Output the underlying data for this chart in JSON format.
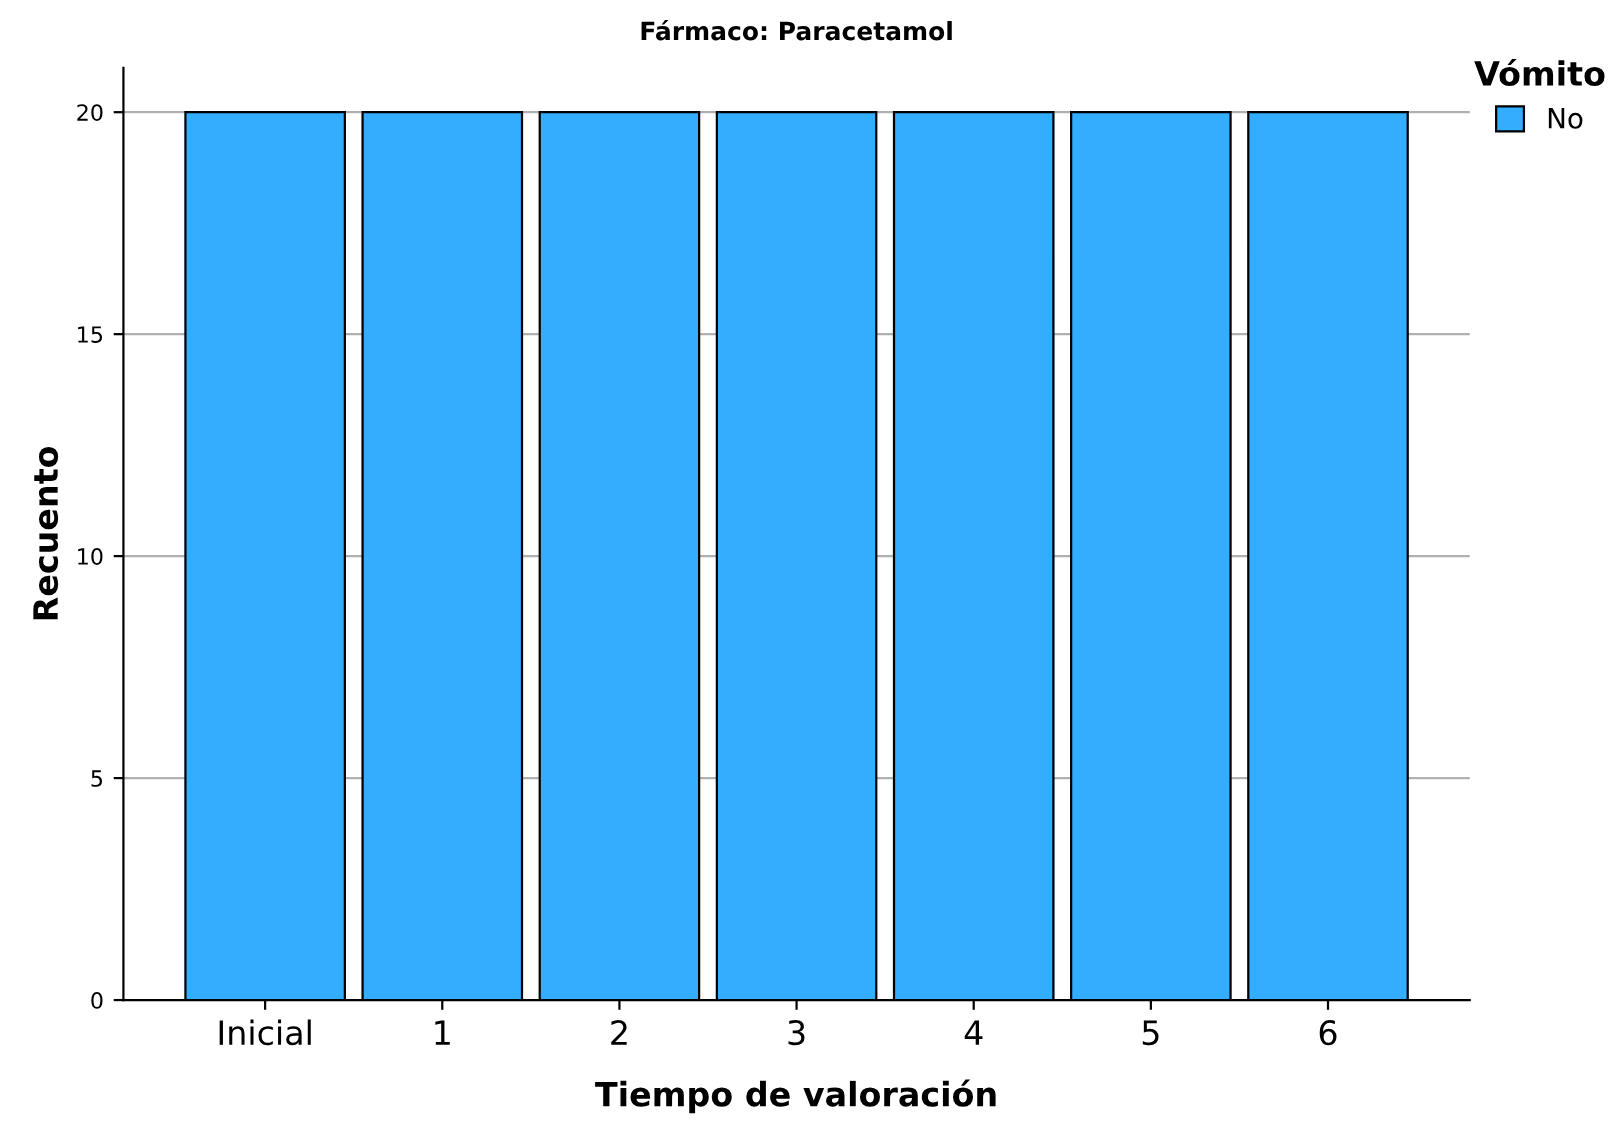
{
  "chart_data": {
    "type": "bar",
    "title": "Fármaco: Paracetamol",
    "xlabel": "Tiempo de valoración",
    "ylabel": "Recuento",
    "legend_title": "Vómito",
    "categories": [
      "Inicial",
      "1",
      "2",
      "3",
      "4",
      "5",
      "6"
    ],
    "series": [
      {
        "name": "No",
        "color": "#33adff",
        "values": [
          20,
          20,
          20,
          20,
          20,
          20,
          20
        ]
      }
    ],
    "ylim": [
      0,
      21
    ],
    "yticks": [
      0,
      5,
      10,
      15,
      20
    ],
    "grid": "y",
    "legend": "top right"
  }
}
